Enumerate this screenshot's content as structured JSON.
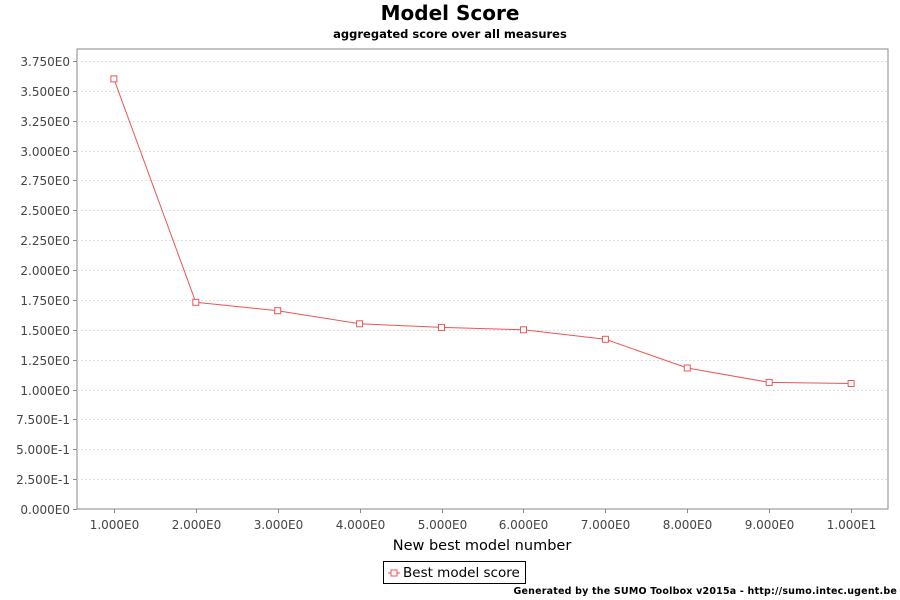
{
  "chart_data": {
    "type": "line",
    "title": "Model Score",
    "subtitle": "aggregated score over all measures",
    "xlabel": "New best model number",
    "ylabel": "",
    "x": [
      1,
      2,
      3,
      4,
      5,
      6,
      7,
      8,
      9,
      10
    ],
    "x_tick_labels": [
      "1.000E0",
      "2.000E0",
      "3.000E0",
      "4.000E0",
      "5.000E0",
      "6.000E0",
      "7.000E0",
      "8.000E0",
      "9.000E0",
      "1.000E1"
    ],
    "xlim": [
      0.55,
      10.45
    ],
    "ylim": [
      0,
      3.85
    ],
    "y_ticks": [
      0,
      0.25,
      0.5,
      0.75,
      1.0,
      1.25,
      1.5,
      1.75,
      2.0,
      2.25,
      2.5,
      2.75,
      3.0,
      3.25,
      3.5,
      3.75
    ],
    "y_tick_labels": [
      "0.000E0",
      "2.500E-1",
      "5.000E-1",
      "7.500E-1",
      "1.000E0",
      "1.250E0",
      "1.500E0",
      "1.750E0",
      "2.000E0",
      "2.250E0",
      "2.500E0",
      "2.750E0",
      "3.000E0",
      "3.250E0",
      "3.500E0",
      "3.750E0"
    ],
    "grid": true,
    "legend_position": "bottom-center",
    "series": [
      {
        "name": "Best model score",
        "color": "#ee5555",
        "marker": "square",
        "values": [
          3.6,
          1.73,
          1.66,
          1.55,
          1.52,
          1.5,
          1.42,
          1.18,
          1.06,
          1.05
        ]
      }
    ]
  },
  "footer": "Generated by the SUMO Toolbox v2015a - http://sumo.intec.ugent.be"
}
